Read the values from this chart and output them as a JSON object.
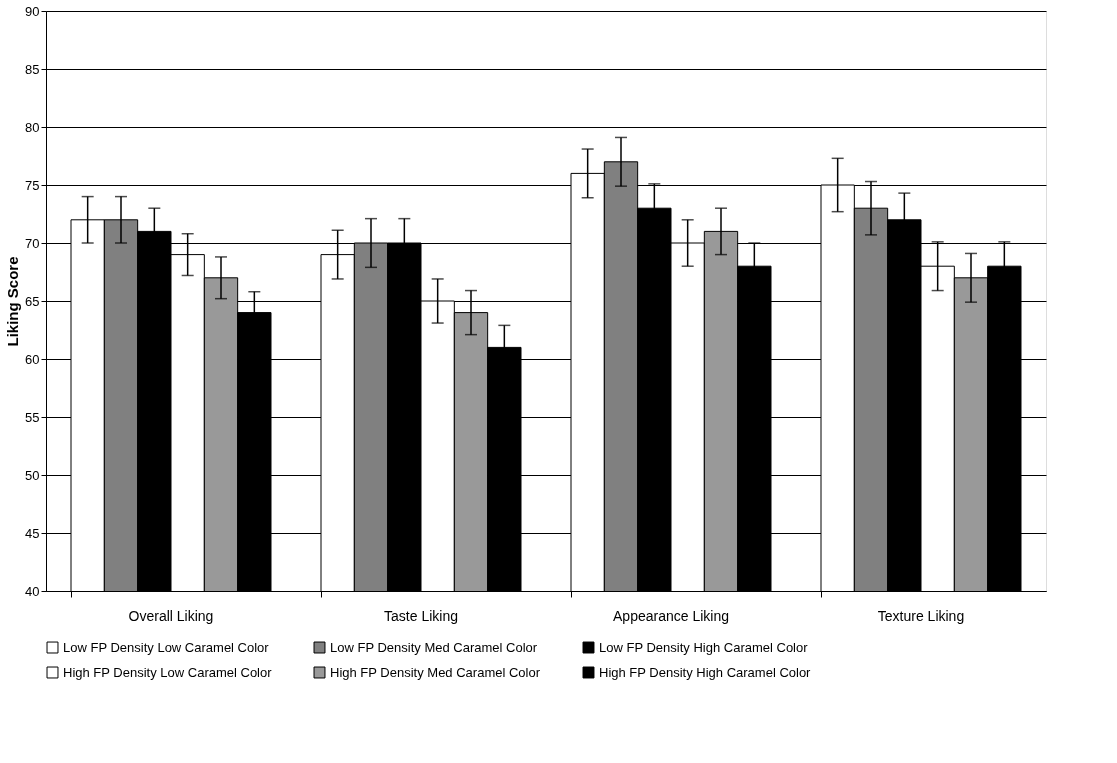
{
  "chart_data": {
    "type": "bar",
    "ylabel": "Liking Score",
    "categories": [
      "Overall Liking",
      "Taste Liking",
      "Appearance Liking",
      "Texture Liking"
    ],
    "series": [
      {
        "name": "Low FP Density Low Caramel Color",
        "color": "#ffffff",
        "values": [
          72,
          69,
          76,
          75
        ],
        "errors": [
          2,
          2.1,
          2.1,
          2.3
        ]
      },
      {
        "name": "Low FP Density Med Caramel Color",
        "color": "#808080",
        "values": [
          72,
          70,
          77,
          73
        ],
        "errors": [
          2,
          2.1,
          2.1,
          2.3
        ]
      },
      {
        "name": "Low FP Density High Caramel Color",
        "color": "#000000",
        "values": [
          71,
          70,
          73,
          72
        ],
        "errors": [
          2,
          2.1,
          2.1,
          2.3
        ]
      },
      {
        "name": "High FP Density Low Caramel Color",
        "color": "#ffffff",
        "values": [
          69,
          65,
          70,
          68
        ],
        "errors": [
          1.8,
          1.9,
          2,
          2.1
        ]
      },
      {
        "name": "High FP Density Med Caramel Color",
        "color": "#999999",
        "values": [
          67,
          64,
          71,
          67
        ],
        "errors": [
          1.8,
          1.9,
          2,
          2.1
        ]
      },
      {
        "name": "High FP Density High Caramel Color",
        "color": "#000000",
        "values": [
          64,
          61,
          68,
          68
        ],
        "errors": [
          1.8,
          1.9,
          2,
          2.1
        ]
      }
    ],
    "ylim": [
      40,
      90
    ],
    "yticks": [
      40,
      45,
      50,
      55,
      60,
      65,
      70,
      75,
      80,
      85,
      90
    ],
    "grid": "y",
    "legend": "bottom"
  }
}
